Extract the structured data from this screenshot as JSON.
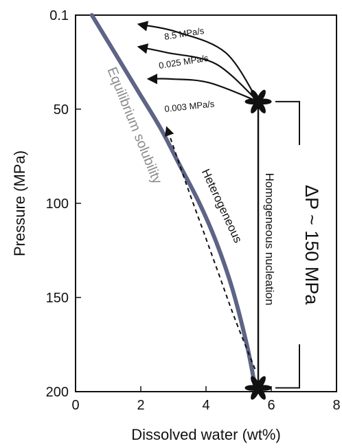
{
  "chart_data": {
    "type": "line",
    "xlabel": "Dissolved water (wt%)",
    "ylabel": "Pressure (MPa)",
    "xlim": [
      0,
      8
    ],
    "ylim": [
      200,
      0.1
    ],
    "y_inverted": true,
    "x_ticks": [
      {
        "value": 0,
        "label": "0"
      },
      {
        "value": 2,
        "label": "2"
      },
      {
        "value": 4,
        "label": "4"
      },
      {
        "value": 6,
        "label": "6"
      },
      {
        "value": 8,
        "label": "8"
      }
    ],
    "y_ticks": [
      {
        "value": 0.1,
        "label": "0.1"
      },
      {
        "value": 50,
        "label": "50"
      },
      {
        "value": 100,
        "label": "100"
      },
      {
        "value": 150,
        "label": "150"
      },
      {
        "value": 200,
        "label": "200"
      }
    ],
    "series": [
      {
        "name": "Equilibrium solubility",
        "color": "#5d6486",
        "style": "solid-thick",
        "points": [
          [
            0.5,
            0.1
          ],
          [
            1.2,
            20
          ],
          [
            1.9,
            40
          ],
          [
            2.6,
            60
          ],
          [
            3.2,
            80
          ],
          [
            3.8,
            100
          ],
          [
            4.3,
            120
          ],
          [
            4.8,
            145
          ],
          [
            5.25,
            175
          ],
          [
            5.5,
            197
          ]
        ]
      },
      {
        "name": "Heterogeneous",
        "color": "#111111",
        "style": "dashed-arrow",
        "points": [
          [
            5.5,
            188
          ],
          [
            4.9,
            162
          ],
          [
            4.4,
            138
          ],
          [
            3.9,
            114
          ],
          [
            3.4,
            90
          ],
          [
            3.0,
            70
          ],
          [
            2.8,
            60
          ]
        ]
      },
      {
        "name": "Homogeneous nucleation",
        "color": "#111111",
        "style": "solid",
        "points": [
          [
            5.6,
            198
          ],
          [
            5.6,
            46
          ]
        ]
      }
    ],
    "decompression_paths": [
      {
        "label": "8.5 MPa/s",
        "points": [
          [
            5.6,
            46
          ],
          [
            4.6,
            20
          ],
          [
            3.1,
            9
          ],
          [
            1.95,
            5
          ]
        ]
      },
      {
        "label": "0.025 MPa/s",
        "points": [
          [
            5.6,
            46
          ],
          [
            4.3,
            26
          ],
          [
            2.8,
            20
          ],
          [
            1.95,
            17
          ]
        ]
      },
      {
        "label": "0.003 MPa/s",
        "points": [
          [
            5.6,
            46
          ],
          [
            4.1,
            36
          ],
          [
            2.9,
            34
          ],
          [
            2.25,
            34
          ]
        ]
      }
    ],
    "markers": [
      {
        "name": "upper-star",
        "x": 5.6,
        "y": 46
      },
      {
        "name": "lower-star",
        "x": 5.6,
        "y": 198
      }
    ],
    "annotations": {
      "equilibrium": "Equilibrium solubility",
      "heterogeneous": "Heterogeneous",
      "homogeneous": "Homogeneous nucleation",
      "delta_p": "ΔP ~ 150 MPa"
    },
    "delta_p_bracket": {
      "from": 46,
      "to": 198
    },
    "grid": false,
    "legend": "none"
  }
}
